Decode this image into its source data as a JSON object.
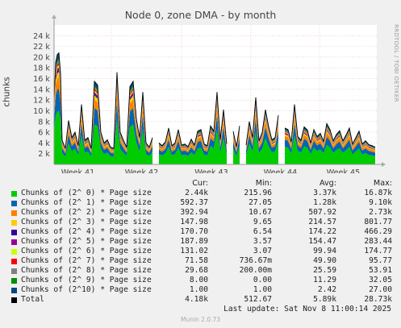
{
  "chart_data": {
    "type": "area",
    "title": "Node 0, zone DMA - by month",
    "ylabel": "chunks",
    "side_text": "RRDTOOL / TOBI OETIKER",
    "ylim": [
      0,
      26000
    ],
    "yticks": [
      2000,
      4000,
      6000,
      8000,
      10000,
      12000,
      14000,
      16000,
      18000,
      20000,
      22000,
      24000
    ],
    "ytick_labels": [
      "2 k",
      "4 k",
      "6 k",
      "8 k",
      "10 k",
      "12 k",
      "14 k",
      "16 k",
      "18 k",
      "20 k",
      "22 k",
      "24 k"
    ],
    "xticks": [
      "Week 41",
      "Week 42",
      "Week 43",
      "Week 44",
      "Week 45"
    ],
    "total_x": [
      0,
      2,
      4,
      6,
      8,
      10,
      14,
      18,
      22,
      26,
      30,
      34,
      38,
      42,
      46,
      50,
      54,
      58,
      62,
      66,
      70,
      74,
      78,
      82,
      86,
      90,
      94,
      98,
      102,
      106,
      110,
      114,
      118,
      122,
      126,
      130,
      134,
      138,
      142,
      146,
      150,
      154,
      158,
      162,
      166,
      170,
      174,
      178,
      182,
      186,
      190,
      194,
      198,
      202,
      206,
      210,
      214,
      218,
      222,
      226,
      230,
      234,
      238,
      242,
      246,
      250,
      254,
      258,
      262,
      266,
      270,
      274,
      278,
      282,
      286,
      290,
      294,
      298,
      302,
      306,
      310,
      314,
      318,
      322,
      326,
      330,
      334,
      338,
      342,
      346,
      350,
      354,
      358,
      362,
      366,
      370,
      374,
      378,
      382,
      386,
      390,
      394,
      398
    ],
    "total_values": [
      12000,
      19000,
      20500,
      20800,
      17000,
      4500,
      3000,
      8200,
      5000,
      6000,
      3500,
      11200,
      4500,
      5000,
      3000,
      15500,
      14800,
      6000,
      4000,
      4600,
      3200,
      3000,
      17200,
      6000,
      4500,
      3200,
      14500,
      15500,
      8500,
      5000,
      13500,
      4000,
      3200,
      5000,
      7000,
      4000,
      3500,
      4200,
      6800,
      3500,
      4000,
      6500,
      3600,
      3800,
      3300,
      4700,
      3600,
      6200,
      6500,
      3800,
      3500,
      7200,
      6200,
      13500,
      4600,
      10200,
      3800,
      4200,
      6200,
      3300,
      7200,
      4800,
      3600,
      8000,
      5000,
      12500,
      4400,
      6000,
      10200,
      7000,
      4600,
      5000,
      9200,
      8500,
      6800,
      6500,
      4200,
      11200,
      5200,
      4500,
      7000,
      6400,
      4000,
      6500,
      5200,
      5800,
      4300,
      7600,
      6500,
      4400,
      5600,
      6300,
      4400,
      5500,
      6800,
      3800,
      5000,
      6200,
      3800,
      4400,
      3700,
      3500,
      3200
    ],
    "gaps": [
      [
        125,
        130
      ],
      [
        217,
        221
      ],
      [
        233,
        237
      ],
      [
        280,
        284
      ]
    ],
    "series": [
      {
        "name": "Chunks of (2^ 0) * Page size",
        "color": "#00cc00",
        "fraction": 0.48
      },
      {
        "name": "Chunks of (2^ 1) * Page size",
        "color": "#0066b3",
        "fraction": 0.2
      },
      {
        "name": "Chunks of (2^ 2) * Page size",
        "color": "#ff8000",
        "fraction": 0.1
      },
      {
        "name": "Chunks of (2^ 3) * Page size",
        "color": "#ffcc00",
        "fraction": 0.05
      },
      {
        "name": "Chunks of (2^ 4) * Page size",
        "color": "#330099",
        "fraction": 0.02
      },
      {
        "name": "Chunks of (2^ 5) * Page size",
        "color": "#990099",
        "fraction": 0.02
      },
      {
        "name": "Chunks of (2^ 6) * Page size",
        "color": "#ccff00",
        "fraction": 0.02
      },
      {
        "name": "Chunks of (2^ 7) * Page size",
        "color": "#ff0000",
        "fraction": 0.02
      },
      {
        "name": "Chunks of (2^ 8) * Page size",
        "color": "#808080",
        "fraction": 0.02
      },
      {
        "name": "Chunks of (2^ 9) * Page size",
        "color": "#008f00",
        "fraction": 0.02
      },
      {
        "name": "Chunks of (2^10) * Page size",
        "color": "#00487d",
        "fraction": 0.05
      }
    ]
  },
  "legend": {
    "headers": [
      "Cur:",
      "Min:",
      "Avg:",
      "Max:"
    ],
    "rows": [
      {
        "name": "Chunks of (2^ 0) * Page size",
        "color": "#00cc00",
        "cur": "2.44k",
        "min": "215.96",
        "avg": "3.37k",
        "max": "16.87k"
      },
      {
        "name": "Chunks of (2^ 1) * Page size",
        "color": "#0066b3",
        "cur": "592.37",
        "min": "27.05",
        "avg": "1.28k",
        "max": "9.10k"
      },
      {
        "name": "Chunks of (2^ 2) * Page size",
        "color": "#ff8000",
        "cur": "392.94",
        "min": "10.67",
        "avg": "507.92",
        "max": "2.73k"
      },
      {
        "name": "Chunks of (2^ 3) * Page size",
        "color": "#ffcc00",
        "cur": "147.98",
        "min": "9.65",
        "avg": "214.57",
        "max": "801.77"
      },
      {
        "name": "Chunks of (2^ 4) * Page size",
        "color": "#330099",
        "cur": "170.70",
        "min": "6.54",
        "avg": "174.22",
        "max": "466.29"
      },
      {
        "name": "Chunks of (2^ 5) * Page size",
        "color": "#990099",
        "cur": "187.89",
        "min": "3.57",
        "avg": "154.47",
        "max": "283.44"
      },
      {
        "name": "Chunks of (2^ 6) * Page size",
        "color": "#ccff00",
        "cur": "131.02",
        "min": "3.07",
        "avg": "99.94",
        "max": "174.77"
      },
      {
        "name": "Chunks of (2^ 7) * Page size",
        "color": "#ff0000",
        "cur": "71.58",
        "min": "736.67m",
        "avg": "49.90",
        "max": "95.77"
      },
      {
        "name": "Chunks of (2^ 8) * Page size",
        "color": "#808080",
        "cur": "29.68",
        "min": "200.00m",
        "avg": "25.59",
        "max": "53.91"
      },
      {
        "name": "Chunks of (2^ 9) * Page size",
        "color": "#008f00",
        "cur": "8.00",
        "min": "0.00",
        "avg": "11.29",
        "max": "32.05"
      },
      {
        "name": "Chunks of (2^10) * Page size",
        "color": "#00487d",
        "cur": "1.00",
        "min": "1.00",
        "avg": "2.42",
        "max": "27.00"
      },
      {
        "name": "Total",
        "color": "#000000",
        "cur": "4.18k",
        "min": "512.67",
        "avg": "5.89k",
        "max": "28.73k"
      }
    ]
  },
  "footer": {
    "last_update": "Last update: Sat Nov  8 11:00:14 2025",
    "munin_version": "Munin 2.0.73"
  }
}
